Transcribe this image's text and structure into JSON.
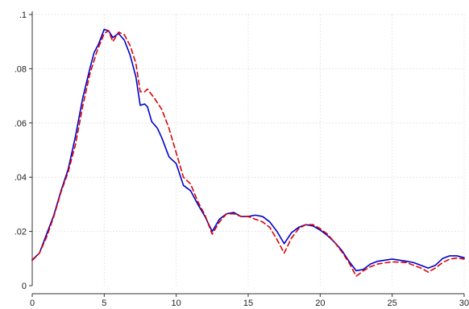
{
  "chart_data": {
    "type": "line",
    "title": "",
    "xlabel": "",
    "ylabel": "",
    "xlim": [
      0,
      30
    ],
    "ylim": [
      0,
      0.1
    ],
    "grid": true,
    "x_ticks": [
      0,
      5,
      10,
      15,
      20,
      25,
      30
    ],
    "x_tick_labels": [
      "0",
      "5",
      "10",
      "15",
      "20",
      "25",
      "30"
    ],
    "y_ticks": [
      0,
      0.02,
      0.04,
      0.06,
      0.08,
      0.1
    ],
    "y_tick_labels": [
      "0",
      ".02",
      ".04",
      ".06",
      ".08",
      ".1"
    ],
    "series": [
      {
        "color": "#0000cc",
        "style": "solid",
        "points": [
          [
            0,
            0.0095
          ],
          [
            0.5,
            0.012
          ],
          [
            1,
            0.019
          ],
          [
            1.5,
            0.026
          ],
          [
            2,
            0.035
          ],
          [
            2.5,
            0.043
          ],
          [
            3,
            0.055
          ],
          [
            3.5,
            0.069
          ],
          [
            4,
            0.08
          ],
          [
            4.3,
            0.086
          ],
          [
            4.6,
            0.089
          ],
          [
            5,
            0.0945
          ],
          [
            5.3,
            0.094
          ],
          [
            5.6,
            0.0915
          ],
          [
            6,
            0.093
          ],
          [
            6.4,
            0.0905
          ],
          [
            6.8,
            0.085
          ],
          [
            7.2,
            0.077
          ],
          [
            7.5,
            0.0665
          ],
          [
            7.8,
            0.067
          ],
          [
            8,
            0.066
          ],
          [
            8.3,
            0.0605
          ],
          [
            8.7,
            0.058
          ],
          [
            9,
            0.0545
          ],
          [
            9.5,
            0.0475
          ],
          [
            10,
            0.045
          ],
          [
            10.5,
            0.037
          ],
          [
            11,
            0.035
          ],
          [
            11.5,
            0.03
          ],
          [
            12,
            0.0255
          ],
          [
            12.5,
            0.02
          ],
          [
            13,
            0.0245
          ],
          [
            13.5,
            0.0265
          ],
          [
            14,
            0.027
          ],
          [
            14.5,
            0.0255
          ],
          [
            15,
            0.0255
          ],
          [
            15.5,
            0.026
          ],
          [
            16,
            0.0255
          ],
          [
            16.5,
            0.0235
          ],
          [
            17,
            0.02
          ],
          [
            17.5,
            0.0155
          ],
          [
            18,
            0.0195
          ],
          [
            18.5,
            0.0215
          ],
          [
            19,
            0.0225
          ],
          [
            19.5,
            0.022
          ],
          [
            20,
            0.0205
          ],
          [
            20.5,
            0.0185
          ],
          [
            21,
            0.016
          ],
          [
            21.5,
            0.013
          ],
          [
            22,
            0.009
          ],
          [
            22.5,
            0.0055
          ],
          [
            23,
            0.006
          ],
          [
            23.5,
            0.008
          ],
          [
            24,
            0.009
          ],
          [
            25,
            0.0098
          ],
          [
            26,
            0.009
          ],
          [
            26.5,
            0.0085
          ],
          [
            27,
            0.0075
          ],
          [
            27.5,
            0.0065
          ],
          [
            28,
            0.0075
          ],
          [
            28.5,
            0.01
          ],
          [
            29,
            0.011
          ],
          [
            29.5,
            0.011
          ],
          [
            30,
            0.0103
          ]
        ]
      },
      {
        "color": "#dd0000",
        "style": "dashed",
        "points": [
          [
            0,
            0.0093
          ],
          [
            0.5,
            0.012
          ],
          [
            1,
            0.018
          ],
          [
            1.5,
            0.0255
          ],
          [
            2,
            0.0345
          ],
          [
            2.5,
            0.042
          ],
          [
            3,
            0.052
          ],
          [
            3.5,
            0.066
          ],
          [
            4,
            0.078
          ],
          [
            4.5,
            0.0865
          ],
          [
            5,
            0.093
          ],
          [
            5.3,
            0.094
          ],
          [
            5.6,
            0.09
          ],
          [
            6,
            0.0935
          ],
          [
            6.4,
            0.0925
          ],
          [
            6.8,
            0.0885
          ],
          [
            7.2,
            0.082
          ],
          [
            7.5,
            0.0715
          ],
          [
            7.8,
            0.0715
          ],
          [
            8,
            0.0725
          ],
          [
            8.5,
            0.069
          ],
          [
            9,
            0.065
          ],
          [
            9.5,
            0.058
          ],
          [
            10,
            0.049
          ],
          [
            10.5,
            0.04
          ],
          [
            11,
            0.0375
          ],
          [
            11.5,
            0.031
          ],
          [
            12,
            0.026
          ],
          [
            12.5,
            0.019
          ],
          [
            13,
            0.0235
          ],
          [
            13.5,
            0.0265
          ],
          [
            14,
            0.0265
          ],
          [
            14.5,
            0.0255
          ],
          [
            15,
            0.0255
          ],
          [
            15.5,
            0.0245
          ],
          [
            16,
            0.0235
          ],
          [
            16.5,
            0.0215
          ],
          [
            17,
            0.017
          ],
          [
            17.5,
            0.012
          ],
          [
            18,
            0.0175
          ],
          [
            18.5,
            0.021
          ],
          [
            19,
            0.0225
          ],
          [
            19.5,
            0.0225
          ],
          [
            20,
            0.021
          ],
          [
            20.5,
            0.019
          ],
          [
            21,
            0.016
          ],
          [
            21.5,
            0.0125
          ],
          [
            22,
            0.0085
          ],
          [
            22.5,
            0.0035
          ],
          [
            23,
            0.0055
          ],
          [
            23.5,
            0.007
          ],
          [
            24,
            0.008
          ],
          [
            25,
            0.0088
          ],
          [
            26,
            0.0085
          ],
          [
            26.5,
            0.0075
          ],
          [
            27,
            0.0065
          ],
          [
            27.5,
            0.005
          ],
          [
            28,
            0.0065
          ],
          [
            28.5,
            0.0085
          ],
          [
            29,
            0.0098
          ],
          [
            29.5,
            0.0102
          ],
          [
            30,
            0.0098
          ]
        ]
      }
    ]
  }
}
